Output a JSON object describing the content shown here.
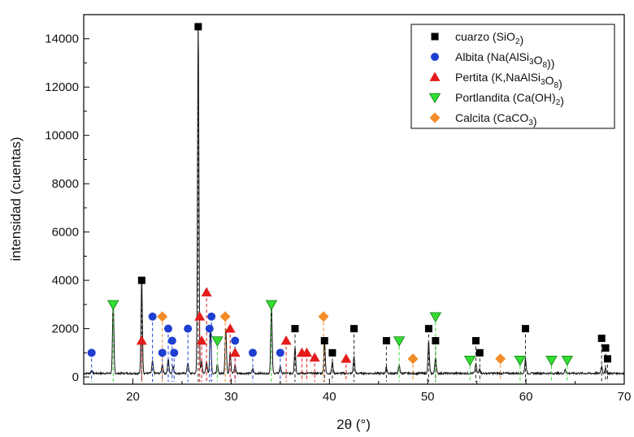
{
  "chart_data": {
    "type": "scatter",
    "xlabel": "2θ (°)",
    "ylabel": "intensidad (cuentas)",
    "xlim": [
      15,
      70
    ],
    "ylim": [
      -300,
      15000
    ],
    "x_ticks": [
      20,
      30,
      40,
      50,
      60,
      70
    ],
    "y_ticks": [
      0,
      2000,
      4000,
      6000,
      8000,
      10000,
      12000,
      14000
    ],
    "legend_position": "top-right",
    "grid": false,
    "pattern_peaks": [
      [
        15.8,
        130
      ],
      [
        18.0,
        2900
      ],
      [
        20.9,
        3900
      ],
      [
        22.0,
        500
      ],
      [
        23.0,
        400
      ],
      [
        23.6,
        600
      ],
      [
        24.1,
        300
      ],
      [
        25.6,
        450
      ],
      [
        26.65,
        14500
      ],
      [
        27.0,
        500
      ],
      [
        27.5,
        500
      ],
      [
        27.9,
        1900
      ],
      [
        28.6,
        350
      ],
      [
        29.45,
        1900
      ],
      [
        29.9,
        900
      ],
      [
        30.4,
        350
      ],
      [
        32.2,
        200
      ],
      [
        34.1,
        2900
      ],
      [
        35.0,
        300
      ],
      [
        36.5,
        1100
      ],
      [
        39.5,
        1400
      ],
      [
        40.3,
        450
      ],
      [
        42.5,
        700
      ],
      [
        45.8,
        250
      ],
      [
        47.1,
        350
      ],
      [
        50.1,
        1300
      ],
      [
        50.8,
        700
      ],
      [
        54.9,
        400
      ],
      [
        55.3,
        200
      ],
      [
        59.95,
        600
      ],
      [
        64.0,
        150
      ],
      [
        67.7,
        300
      ],
      [
        68.1,
        200
      ]
    ],
    "series": [
      {
        "name": "cuarzo (SiO₂)",
        "marker": "square",
        "color": "#000000",
        "x": [
          20.9,
          26.65,
          36.5,
          39.5,
          40.3,
          42.5,
          45.8,
          50.1,
          50.8,
          54.9,
          55.3,
          59.95,
          67.7,
          68.1,
          68.3
        ],
        "y": [
          4000,
          14500,
          2000,
          1500,
          1000,
          2000,
          1500,
          2000,
          1500,
          1500,
          1000,
          2000,
          1600,
          1200,
          750
        ]
      },
      {
        "name": "Albita (Na(AlSi₃O₈))",
        "marker": "circle",
        "color": "#1f3fd1",
        "x": [
          15.8,
          22.0,
          23.0,
          23.6,
          24.0,
          24.2,
          25.6,
          27.8,
          28.0,
          30.4,
          32.2,
          35.0
        ],
        "y": [
          1000,
          2500,
          1000,
          2000,
          1500,
          1000,
          2000,
          2000,
          2500,
          1500,
          1000,
          1000
        ]
      },
      {
        "name": "Pertita (K,NaAlSi₃O₈)",
        "marker": "triangle-up",
        "color": "#e51a1a",
        "x": [
          20.9,
          26.8,
          27.0,
          27.5,
          29.9,
          30.4,
          35.6,
          37.2,
          37.7,
          38.5,
          41.7
        ],
        "y": [
          1500,
          2500,
          1500,
          3500,
          2000,
          1000,
          1500,
          1000,
          1000,
          800,
          750
        ]
      },
      {
        "name": "Portlandita (Ca(OH)₂)",
        "marker": "triangle-down",
        "color": "#33dd33",
        "x": [
          18.0,
          28.6,
          34.1,
          47.1,
          50.8,
          54.3,
          59.4,
          62.6,
          64.2
        ],
        "y": [
          3000,
          1500,
          3000,
          1500,
          2500,
          700,
          700,
          700,
          700
        ]
      },
      {
        "name": "Calcita (CaCO₃)",
        "marker": "diamond",
        "color": "#f28c28",
        "x": [
          23.0,
          29.4,
          39.4,
          48.5,
          57.4
        ],
        "y": [
          2500,
          2500,
          2500,
          750,
          750
        ]
      }
    ]
  }
}
